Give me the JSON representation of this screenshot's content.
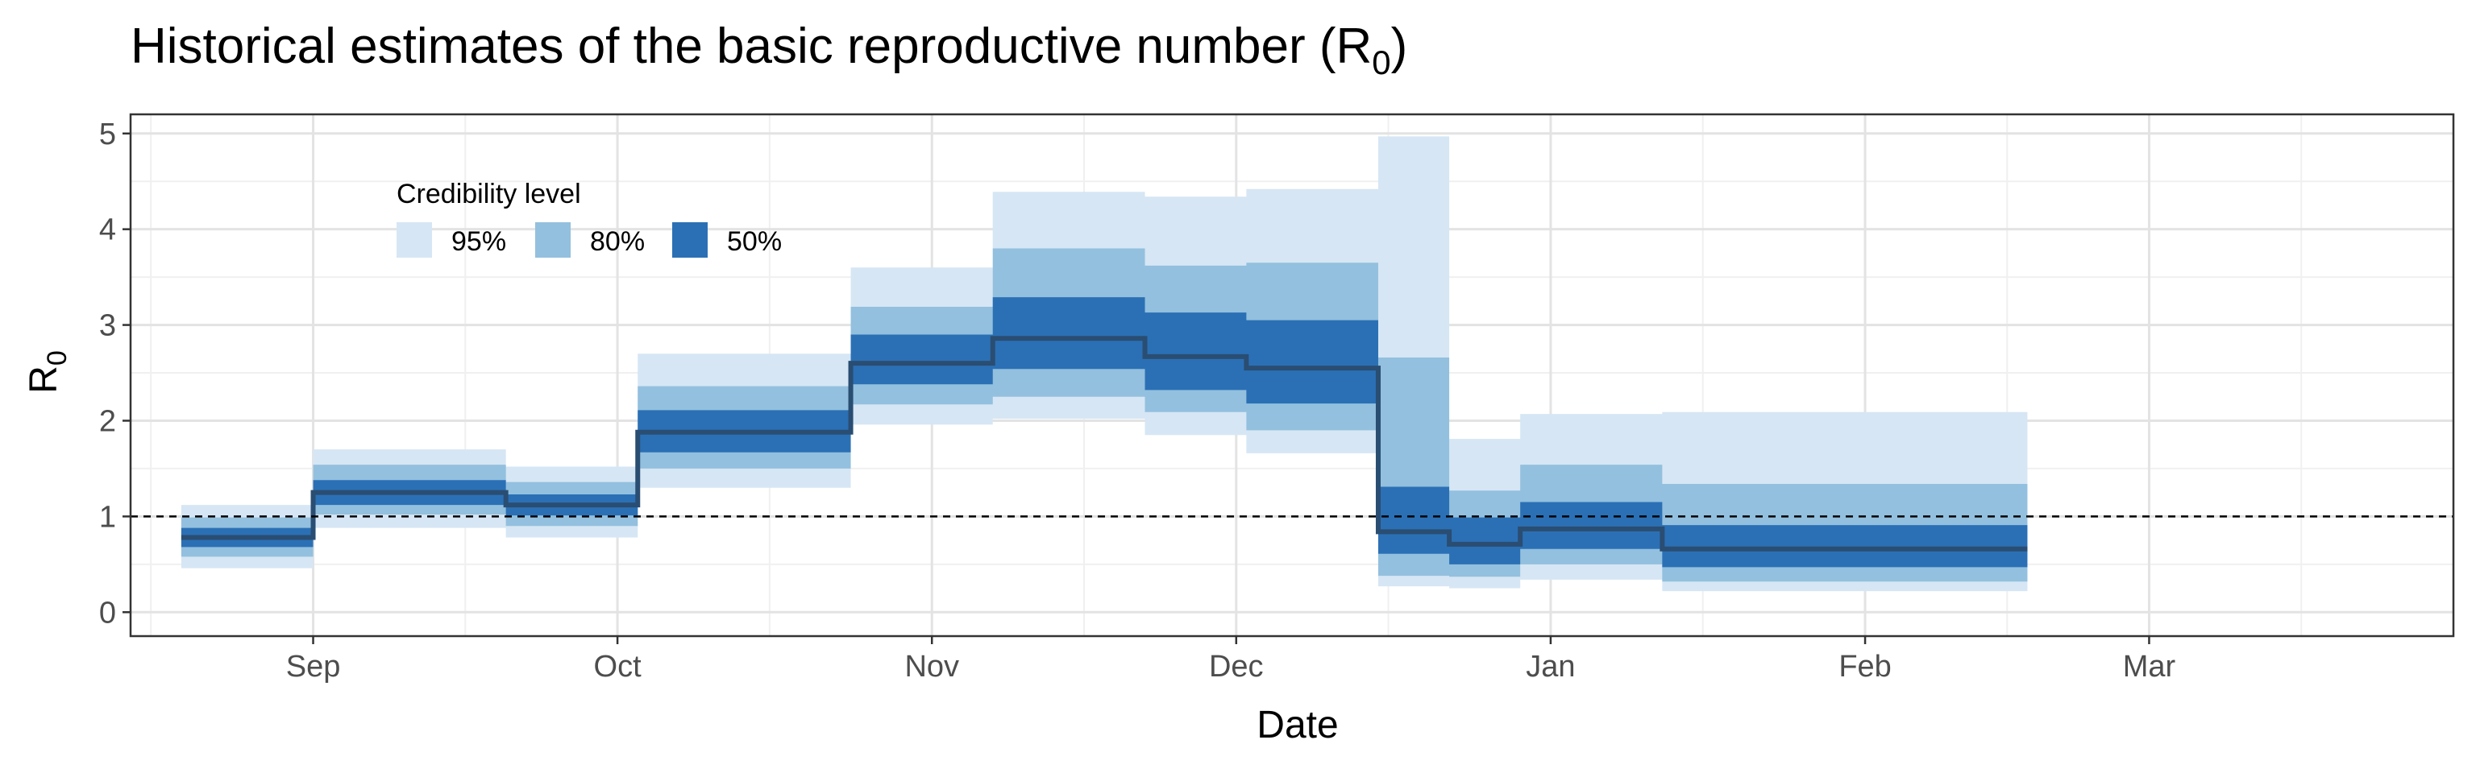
{
  "chart_data": {
    "type": "area",
    "title_main": "Historical estimates of the basic reproductive number (R",
    "title_sub": "0",
    "title_end": ")",
    "xlabel": "Date",
    "ylabel_main": "R",
    "ylabel_sub": "0",
    "xlim": [
      "2020-08-14",
      "2021-03-31"
    ],
    "ylim": [
      -0.25,
      5.2
    ],
    "x_ticks": [
      {
        "date": "2020-09-01",
        "label": "Sep"
      },
      {
        "date": "2020-10-01",
        "label": "Oct"
      },
      {
        "date": "2020-11-01",
        "label": "Nov"
      },
      {
        "date": "2020-12-01",
        "label": "Dec"
      },
      {
        "date": "2021-01-01",
        "label": "Jan"
      },
      {
        "date": "2021-02-01",
        "label": "Feb"
      },
      {
        "date": "2021-03-01",
        "label": "Mar"
      }
    ],
    "x_minor_ticks": [
      "2020-08-16",
      "2020-09-16",
      "2020-10-16",
      "2020-11-16",
      "2020-12-16",
      "2021-01-16",
      "2021-02-15",
      "2021-03-16"
    ],
    "y_ticks": [
      0,
      1,
      2,
      3,
      4,
      5
    ],
    "y_minor_ticks": [
      0.5,
      1.5,
      2.5,
      3.5,
      4.5
    ],
    "reference_line": {
      "y": 1,
      "style": "dashed"
    },
    "grid": true,
    "legend": {
      "title": "Credibility level",
      "placement": "top-left",
      "items": [
        {
          "label": "95%",
          "color": "#d6e6f4"
        },
        {
          "label": "80%",
          "color": "#93c0de"
        },
        {
          "label": "50%",
          "color": "#2b70b5"
        }
      ]
    },
    "median_color": "#2a4d72",
    "steps": [
      {
        "start": "2020-08-19",
        "end": "2020-09-01",
        "median": 0.78,
        "lo95": 0.46,
        "hi95": 1.12,
        "lo80": 0.58,
        "hi80": 0.99,
        "lo50": 0.68,
        "hi50": 0.88
      },
      {
        "start": "2020-09-01",
        "end": "2020-09-20",
        "median": 1.25,
        "lo95": 0.88,
        "hi95": 1.7,
        "lo80": 1.02,
        "hi80": 1.54,
        "lo50": 1.12,
        "hi50": 1.38
      },
      {
        "start": "2020-09-20",
        "end": "2020-10-03",
        "median": 1.12,
        "lo95": 0.78,
        "hi95": 1.52,
        "lo80": 0.9,
        "hi80": 1.36,
        "lo50": 1.01,
        "hi50": 1.23
      },
      {
        "start": "2020-10-03",
        "end": "2020-10-24",
        "median": 1.88,
        "lo95": 1.3,
        "hi95": 2.7,
        "lo80": 1.5,
        "hi80": 2.36,
        "lo50": 1.67,
        "hi50": 2.11
      },
      {
        "start": "2020-10-24",
        "end": "2020-11-07",
        "median": 2.6,
        "lo95": 1.96,
        "hi95": 3.6,
        "lo80": 2.17,
        "hi80": 3.19,
        "lo50": 2.38,
        "hi50": 2.9
      },
      {
        "start": "2020-11-07",
        "end": "2020-11-22",
        "median": 2.86,
        "lo95": 2.02,
        "hi95": 4.39,
        "lo80": 2.25,
        "hi80": 3.8,
        "lo50": 2.54,
        "hi50": 3.29
      },
      {
        "start": "2020-11-22",
        "end": "2020-12-02",
        "median": 2.67,
        "lo95": 1.85,
        "hi95": 4.34,
        "lo80": 2.09,
        "hi80": 3.62,
        "lo50": 2.32,
        "hi50": 3.13
      },
      {
        "start": "2020-12-02",
        "end": "2020-12-15",
        "median": 2.55,
        "lo95": 1.66,
        "hi95": 4.42,
        "lo80": 1.9,
        "hi80": 3.65,
        "lo50": 2.18,
        "hi50": 3.05
      },
      {
        "start": "2020-12-15",
        "end": "2020-12-22",
        "median": 0.84,
        "lo95": 0.27,
        "hi95": 4.97,
        "lo80": 0.38,
        "hi80": 2.66,
        "lo50": 0.61,
        "hi50": 1.31
      },
      {
        "start": "2020-12-22",
        "end": "2020-12-29",
        "median": 0.71,
        "lo95": 0.25,
        "hi95": 1.81,
        "lo80": 0.37,
        "hi80": 1.27,
        "lo50": 0.5,
        "hi50": 0.99
      },
      {
        "start": "2020-12-29",
        "end": "2021-01-12",
        "median": 0.87,
        "lo95": 0.34,
        "hi95": 2.07,
        "lo80": 0.5,
        "hi80": 1.54,
        "lo50": 0.66,
        "hi50": 1.15
      },
      {
        "start": "2021-01-12",
        "end": "2021-02-17",
        "median": 0.66,
        "lo95": 0.22,
        "hi95": 2.09,
        "lo80": 0.32,
        "hi80": 1.34,
        "lo50": 0.47,
        "hi50": 0.91
      }
    ]
  }
}
